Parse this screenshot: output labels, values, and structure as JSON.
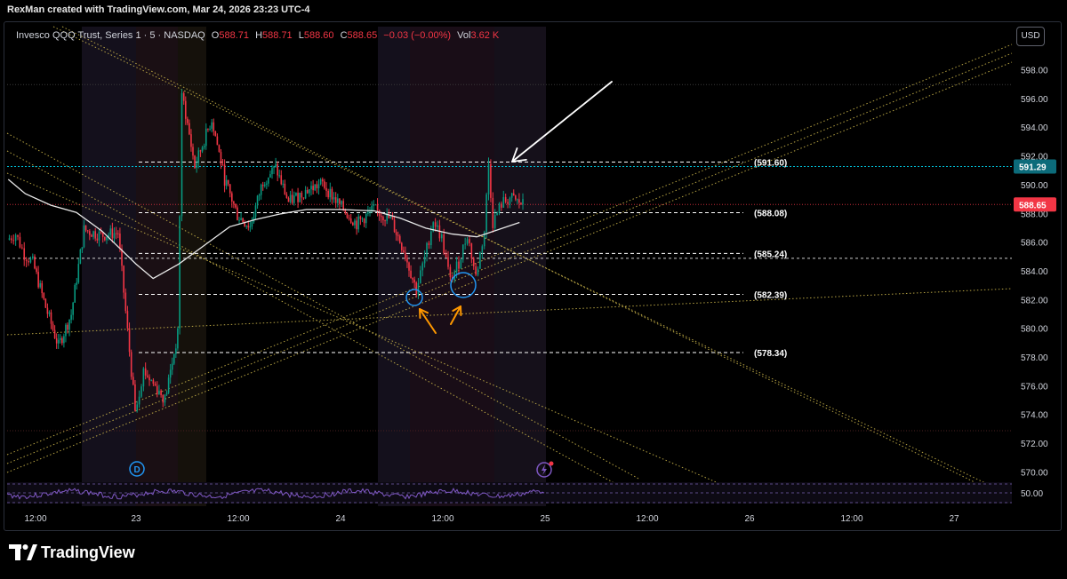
{
  "header": {
    "credit": "RexMan created with TradingView.com, Mar 24, 2026 23:23 UTC-4"
  },
  "legend": {
    "symbol": "Invesco QQQ Trust, Series 1 · 5 · NASDAQ",
    "open_label": "O",
    "open": "588.71",
    "high_label": "H",
    "high": "588.71",
    "low_label": "L",
    "low": "588.60",
    "close_label": "C",
    "close": "588.65",
    "change": "−0.03 (−0.00%)",
    "vol_label": "Vol",
    "vol": "3.62 K"
  },
  "currency_button": "USD",
  "footer": {
    "brand": "TradingView"
  },
  "colors": {
    "background": "#000000",
    "up": "#089981",
    "down": "#f23645",
    "trendline": "#c9b44a",
    "ma": "#e8e8e8",
    "price_line_blue": "#00bcd4",
    "last_price": "#f23645",
    "rsi": "#7e57c2",
    "annotation_orange": "#ff9800",
    "circle_blue": "#2196f3",
    "arrow": "#ffffff"
  },
  "icons": {
    "dividend_marker": "D",
    "events_marker": "lightning-icon"
  },
  "chart_data": {
    "type": "candlestick",
    "title": "",
    "xlabel": "",
    "ylabel": "",
    "ylim": [
      569.5,
      599.3
    ],
    "x_ticks": [
      "12:00",
      "23",
      "12:00",
      "24",
      "12:00",
      "25",
      "12:00",
      "26",
      "12:00",
      "27"
    ],
    "y_ticks": [
      "598.00",
      "596.00",
      "594.00",
      "592.00",
      "590.00",
      "588.00",
      "586.00",
      "584.00",
      "582.00",
      "580.00",
      "578.00",
      "576.00",
      "574.00",
      "572.00",
      "570.00"
    ],
    "grid": false,
    "last_price": "588.65",
    "blue_line_price": "591.29",
    "horizontal_levels": [
      {
        "value": 591.6,
        "label": "(591.60)"
      },
      {
        "value": 588.08,
        "label": "(588.08)"
      },
      {
        "value": 585.24,
        "label": "(585.24)"
      },
      {
        "value": 582.39,
        "label": "(582.39)"
      },
      {
        "value": 578.34,
        "label": "(578.34)"
      }
    ],
    "close_path": [
      {
        "t": "Mar 22 09:00",
        "v": 586.2
      },
      {
        "t": "Mar 22 10:00",
        "v": 586.6
      },
      {
        "t": "Mar 22 11:00",
        "v": 585.2
      },
      {
        "t": "Mar 22 12:00",
        "v": 584.6
      },
      {
        "t": "Mar 22 13:30",
        "v": 581.5
      },
      {
        "t": "Mar 22 15:00",
        "v": 578.8
      },
      {
        "t": "Mar 22 16:30",
        "v": 581.0
      },
      {
        "t": "Mar 22 18:00",
        "v": 586.9
      },
      {
        "t": "Mar 22 20:00",
        "v": 586.5
      },
      {
        "t": "Mar 22 22:00",
        "v": 586.7
      },
      {
        "t": "Mar 23 00:00",
        "v": 574.3
      },
      {
        "t": "Mar 23 01:00",
        "v": 577.1
      },
      {
        "t": "Mar 23 03:30",
        "v": 575.1
      },
      {
        "t": "Mar 23 05:00",
        "v": 579.6
      },
      {
        "t": "Mar 23 05:30",
        "v": 596.4
      },
      {
        "t": "Mar 23 07:00",
        "v": 591.3
      },
      {
        "t": "Mar 23 09:00",
        "v": 594.6
      },
      {
        "t": "Mar 23 10:30",
        "v": 590.4
      },
      {
        "t": "Mar 23 12:00",
        "v": 587.9
      },
      {
        "t": "Mar 23 13:30",
        "v": 587.1
      },
      {
        "t": "Mar 23 15:00",
        "v": 590.3
      },
      {
        "t": "Mar 23 16:30",
        "v": 591.2
      },
      {
        "t": "Mar 23 18:00",
        "v": 588.8
      },
      {
        "t": "Mar 23 20:00",
        "v": 589.6
      },
      {
        "t": "Mar 23 22:00",
        "v": 590.1
      },
      {
        "t": "Mar 24 00:00",
        "v": 588.6
      },
      {
        "t": "Mar 24 02:00",
        "v": 587.3
      },
      {
        "t": "Mar 24 04:00",
        "v": 588.3
      },
      {
        "t": "Mar 24 06:00",
        "v": 587.6
      },
      {
        "t": "Mar 24 07:30",
        "v": 585.5
      },
      {
        "t": "Mar 24 09:00",
        "v": 582.7
      },
      {
        "t": "Mar 24 10:00",
        "v": 584.9
      },
      {
        "t": "Mar 24 11:00",
        "v": 587.6
      },
      {
        "t": "Mar 24 12:00",
        "v": 586.3
      },
      {
        "t": "Mar 24 13:00",
        "v": 583.3
      },
      {
        "t": "Mar 24 14:00",
        "v": 584.6
      },
      {
        "t": "Mar 24 15:00",
        "v": 586.6
      },
      {
        "t": "Mar 24 16:00",
        "v": 583.6
      },
      {
        "t": "Mar 24 17:00",
        "v": 586.8
      },
      {
        "t": "Mar 24 17:30",
        "v": 591.5
      },
      {
        "t": "Mar 24 18:00",
        "v": 587.4
      },
      {
        "t": "Mar 24 19:00",
        "v": 588.7
      },
      {
        "t": "Mar 24 20:00",
        "v": 589.1
      },
      {
        "t": "Mar 24 21:30",
        "v": 588.65
      }
    ],
    "moving_average": [
      {
        "t": "Mar 22 09:00",
        "v": 590.4
      },
      {
        "t": "Mar 22 11:00",
        "v": 589.4
      },
      {
        "t": "Mar 22 14:00",
        "v": 588.6
      },
      {
        "t": "Mar 22 17:00",
        "v": 588.1
      },
      {
        "t": "Mar 22 20:00",
        "v": 586.8
      },
      {
        "t": "Mar 23 00:00",
        "v": 584.5
      },
      {
        "t": "Mar 23 02:00",
        "v": 583.5
      },
      {
        "t": "Mar 23 05:00",
        "v": 584.5
      },
      {
        "t": "Mar 23 08:00",
        "v": 585.8
      },
      {
        "t": "Mar 23 11:00",
        "v": 587.1
      },
      {
        "t": "Mar 23 14:00",
        "v": 587.6
      },
      {
        "t": "Mar 23 17:00",
        "v": 588.0
      },
      {
        "t": "Mar 23 20:00",
        "v": 588.3
      },
      {
        "t": "Mar 24 00:00",
        "v": 588.3
      },
      {
        "t": "Mar 24 04:00",
        "v": 588.2
      },
      {
        "t": "Mar 24 07:00",
        "v": 587.7
      },
      {
        "t": "Mar 24 10:00",
        "v": 587.0
      },
      {
        "t": "Mar 24 13:00",
        "v": 586.6
      },
      {
        "t": "Mar 24 16:00",
        "v": 586.4
      },
      {
        "t": "Mar 24 18:00",
        "v": 586.8
      },
      {
        "t": "Mar 24 21:00",
        "v": 587.4
      }
    ],
    "indicator": {
      "name": "RSI",
      "level_label": "50.00"
    }
  }
}
